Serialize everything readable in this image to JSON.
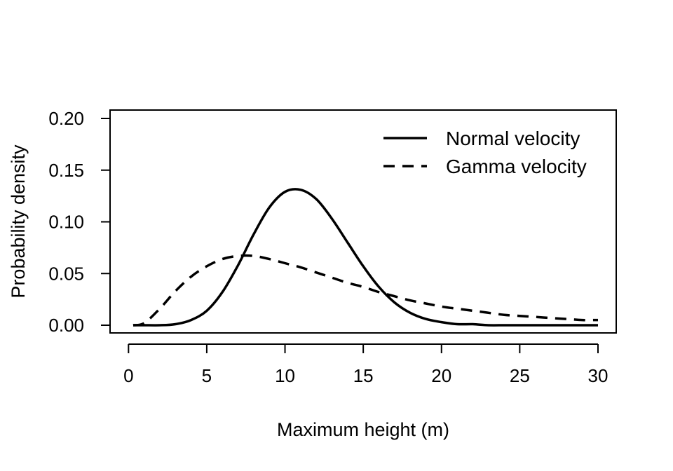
{
  "chart_data": {
    "type": "line",
    "title": "",
    "xlabel": "Maximum height (m)",
    "ylabel": "Probability density",
    "xlim": [
      0.3,
      30
    ],
    "ylim": [
      0,
      0.2
    ],
    "x_ticks": [
      0,
      5,
      10,
      15,
      20,
      25,
      30
    ],
    "x_tick_labels": [
      "0",
      "5",
      "10",
      "15",
      "20",
      "25",
      "30"
    ],
    "y_ticks": [
      0,
      0.05,
      0.1,
      0.15,
      0.2
    ],
    "y_tick_labels": [
      "0.00",
      "0.05",
      "0.10",
      "0.15",
      "0.20"
    ],
    "grid": false,
    "legend_position": "top-right",
    "series": [
      {
        "name": "Normal velocity",
        "line_style": "solid",
        "color": "#000000",
        "x": [
          0.3,
          1,
          2,
          3,
          4,
          5,
          6,
          7,
          8,
          9,
          10,
          11,
          12,
          13,
          14,
          15,
          16,
          17,
          18,
          19,
          20,
          21,
          22,
          23,
          24,
          25,
          26,
          27,
          28,
          29,
          30
        ],
        "y": [
          0.0,
          0.0,
          0.0,
          0.001,
          0.005,
          0.014,
          0.032,
          0.058,
          0.088,
          0.114,
          0.129,
          0.131,
          0.122,
          0.103,
          0.08,
          0.057,
          0.037,
          0.022,
          0.012,
          0.006,
          0.003,
          0.001,
          0.001,
          0.0,
          0.0,
          0.0,
          0.0,
          0.0,
          0.0,
          0.0,
          0.0
        ]
      },
      {
        "name": "Gamma velocity",
        "line_style": "dashed",
        "color": "#000000",
        "x": [
          0.3,
          1,
          2,
          3,
          4,
          5,
          6,
          7,
          8,
          9,
          10,
          11,
          12,
          13,
          14,
          15,
          16,
          17,
          18,
          19,
          20,
          21,
          22,
          23,
          24,
          25,
          26,
          27,
          28,
          29,
          30
        ],
        "y": [
          0.0,
          0.002,
          0.016,
          0.033,
          0.047,
          0.057,
          0.064,
          0.067,
          0.067,
          0.064,
          0.06,
          0.056,
          0.051,
          0.046,
          0.041,
          0.037,
          0.032,
          0.028,
          0.024,
          0.021,
          0.018,
          0.016,
          0.014,
          0.012,
          0.01,
          0.009,
          0.008,
          0.007,
          0.006,
          0.005,
          0.005
        ]
      }
    ]
  }
}
